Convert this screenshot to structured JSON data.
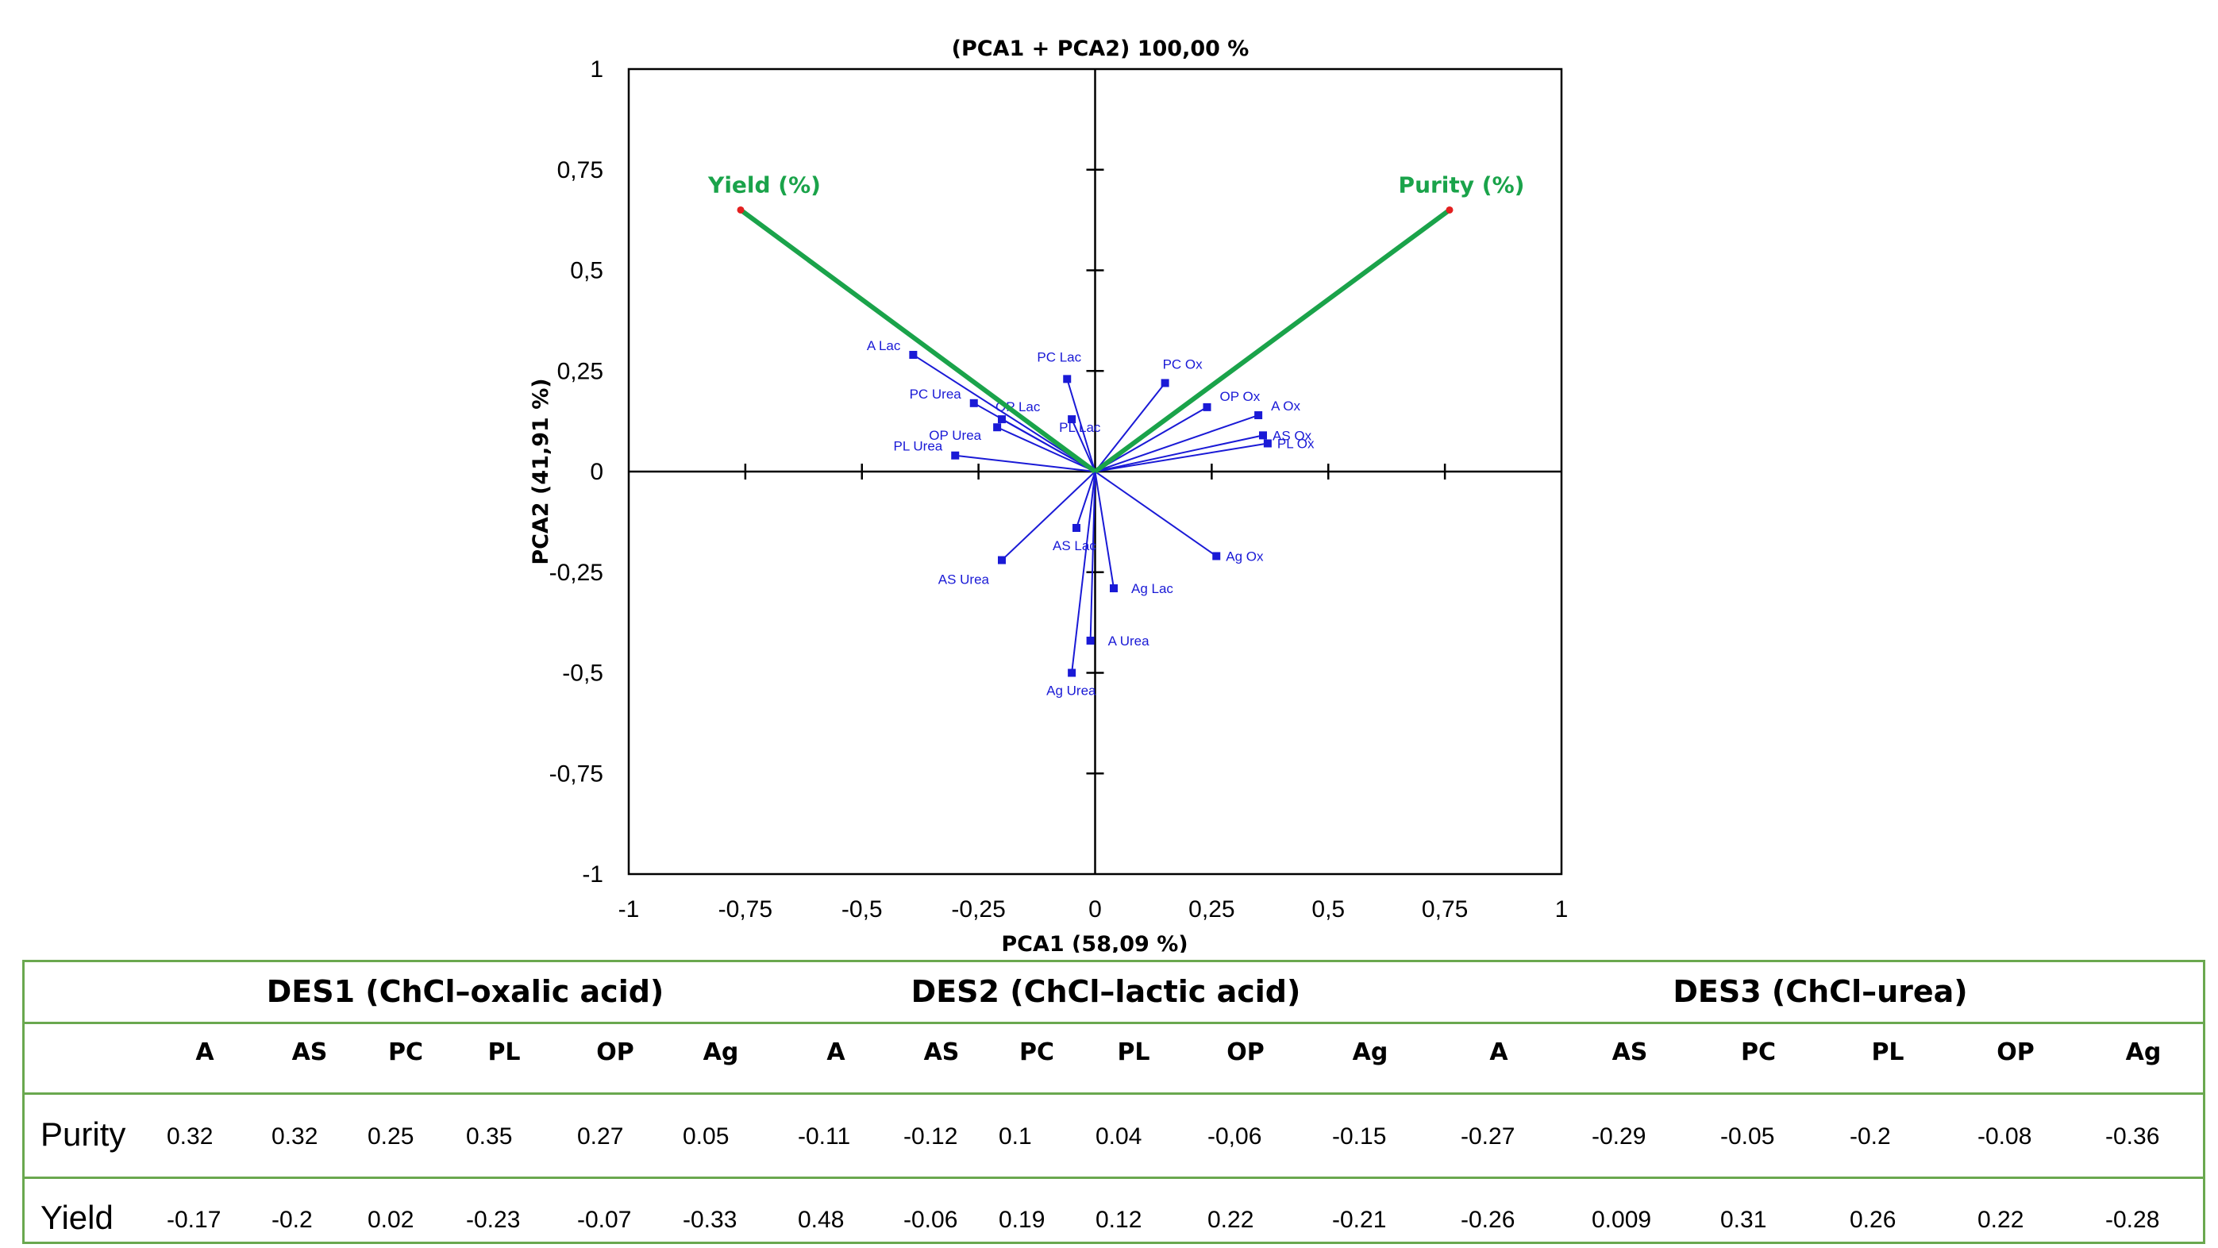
{
  "chart_data": {
    "type": "scatter",
    "subtype": "pca-biplot",
    "title": "(PCA1 + PCA2)  100,00 %",
    "xlabel": "PCA1 (58,09 %)",
    "ylabel": "PCA2 (41,91 %)",
    "xlim": [
      -1,
      1
    ],
    "ylim": [
      -1,
      1
    ],
    "x_ticks": [
      "-1",
      "-0,75",
      "-0,5",
      "-0,25",
      "0",
      "0,25",
      "0,5",
      "0,75",
      "1"
    ],
    "y_ticks": [
      "1",
      "0,75",
      "0,5",
      "0,25",
      "0",
      "-0,25",
      "-0,5",
      "-0,75",
      "-1"
    ],
    "grid": false,
    "colors": {
      "observations": "#1a1ad6",
      "variables": "#1aa34a",
      "variable_tip": "#e32020"
    },
    "observations": [
      {
        "label": "A Lac",
        "x": -0.39,
        "y": 0.29
      },
      {
        "label": "PC Lac",
        "x": -0.06,
        "y": 0.23
      },
      {
        "label": "PC Urea",
        "x": -0.26,
        "y": 0.17
      },
      {
        "label": "OP Lac",
        "x": -0.2,
        "y": 0.13
      },
      {
        "label": "OP Urea",
        "x": -0.21,
        "y": 0.11
      },
      {
        "label": "PL Lac",
        "x": -0.05,
        "y": 0.13
      },
      {
        "label": "PL Urea",
        "x": -0.3,
        "y": 0.04
      },
      {
        "label": "PC Ox",
        "x": 0.15,
        "y": 0.22
      },
      {
        "label": "OP Ox",
        "x": 0.24,
        "y": 0.16
      },
      {
        "label": "A Ox",
        "x": 0.35,
        "y": 0.14
      },
      {
        "label": "AS Ox",
        "x": 0.36,
        "y": 0.09
      },
      {
        "label": "PL Ox",
        "x": 0.37,
        "y": 0.07
      },
      {
        "label": "AS Lac",
        "x": -0.04,
        "y": -0.14
      },
      {
        "label": "AS Urea",
        "x": -0.2,
        "y": -0.22
      },
      {
        "label": "Ag Ox",
        "x": 0.26,
        "y": -0.21
      },
      {
        "label": "Ag Lac",
        "x": 0.04,
        "y": -0.29
      },
      {
        "label": "A Urea",
        "x": -0.01,
        "y": -0.42
      },
      {
        "label": "Ag Urea",
        "x": -0.05,
        "y": -0.5
      }
    ],
    "variables": [
      {
        "label": "Yield (%)",
        "x": -0.76,
        "y": 0.65
      },
      {
        "label": "Purity (%)",
        "x": 0.76,
        "y": 0.65
      }
    ]
  },
  "table": {
    "groups": [
      "DES1 (ChCl–oxalic acid)",
      "DES2 (ChCl–lactic acid)",
      "DES3 (ChCl–urea)"
    ],
    "columns": [
      "A",
      "AS",
      "PC",
      "PL",
      "OP",
      "Ag",
      "A",
      "AS",
      "PC",
      "PL",
      "OP",
      "Ag",
      "A",
      "AS",
      "PC",
      "PL",
      "OP",
      "Ag"
    ],
    "rows": [
      {
        "label": "Purity",
        "values": [
          "0.32",
          "0.32",
          "0.25",
          "0.35",
          "0.27",
          "0.05",
          "-0.11",
          "-0.12",
          "0.1",
          "0.04",
          "-0,06",
          "-0.15",
          "-0.27",
          "-0.29",
          "-0.05",
          "-0.2",
          "-0.08",
          "-0.36"
        ]
      },
      {
        "label": "Yield",
        "values": [
          "-0.17",
          "-0.2",
          "0.02",
          "-0.23",
          "-0.07",
          "-0.33",
          "0.48",
          "-0.06",
          "0.19",
          "0.12",
          "0.22",
          "-0.21",
          "-0.26",
          "0.009",
          "0.31",
          "0.26",
          "0.22",
          "-0.28"
        ]
      }
    ]
  }
}
